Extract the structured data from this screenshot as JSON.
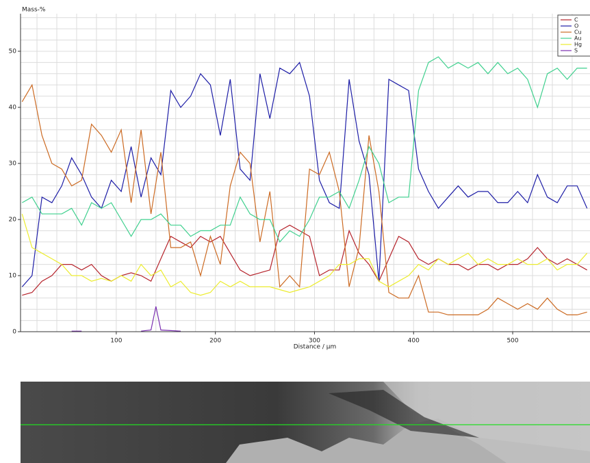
{
  "chart_data": {
    "type": "line",
    "ylabel": "Mass-%",
    "xlabel": "Distance / µm",
    "x": [
      5,
      15,
      25,
      35,
      45,
      55,
      65,
      75,
      85,
      95,
      105,
      115,
      125,
      135,
      145,
      155,
      165,
      175,
      185,
      195,
      205,
      215,
      225,
      235,
      245,
      255,
      265,
      275,
      285,
      295,
      305,
      315,
      325,
      335,
      345,
      355,
      365,
      375,
      385,
      395,
      405,
      415,
      425,
      435,
      445,
      455,
      465,
      475,
      485,
      495,
      505,
      515,
      525,
      535,
      545,
      555,
      565,
      575
    ],
    "xlim": [
      3.4,
      578
    ],
    "ylim": [
      0,
      56.7
    ],
    "xticks": [
      100,
      200,
      300,
      400,
      500
    ],
    "yticks": [
      0,
      10,
      20,
      30,
      40,
      50
    ],
    "xgrid": [
      20,
      40,
      60,
      80,
      120,
      140,
      160,
      180,
      220,
      240,
      260,
      280,
      320,
      340,
      360,
      380,
      420,
      440,
      460,
      480,
      520,
      540,
      560
    ],
    "ygrid": [
      2,
      4,
      6,
      8,
      12,
      14,
      16,
      18,
      22,
      24,
      26,
      28,
      32,
      34,
      36,
      38,
      42,
      44,
      46,
      48,
      52,
      54,
      56
    ],
    "grid": true,
    "legend": "upper right",
    "series": [
      {
        "name": "C",
        "color": "#b5222a",
        "values": [
          6.5,
          7,
          9,
          10,
          12,
          12,
          11,
          12,
          10,
          9,
          10,
          10.5,
          10,
          9,
          13,
          17,
          16,
          15,
          17,
          16,
          17,
          14,
          11,
          10,
          10.5,
          11,
          18,
          19,
          18,
          17,
          10,
          11,
          11,
          18,
          14,
          12,
          9,
          13,
          17,
          16,
          13,
          12,
          13,
          12,
          12,
          11,
          12,
          12,
          11,
          12,
          12,
          13,
          15,
          13,
          12,
          13,
          12,
          11
        ]
      },
      {
        "name": "O",
        "color": "#1c1ca6",
        "values": [
          8,
          10,
          24,
          23,
          26,
          31,
          28,
          24,
          22,
          27,
          25,
          33,
          24,
          31,
          28,
          43,
          40,
          42,
          46,
          44,
          35,
          45,
          29,
          27,
          46,
          38,
          47,
          46,
          48,
          42,
          27,
          23,
          22,
          45,
          34,
          28,
          9,
          45,
          44,
          43,
          29,
          25,
          22,
          24,
          26,
          24,
          25,
          25,
          23,
          23,
          25,
          23,
          28,
          24,
          23,
          26,
          26,
          22
        ]
      },
      {
        "name": "Cu",
        "color": "#cc6a22",
        "values": [
          41,
          44,
          35,
          30,
          29,
          26,
          27,
          37,
          35,
          32,
          36,
          23,
          36,
          21,
          32,
          15,
          15,
          16,
          10,
          17,
          12,
          26,
          32,
          30,
          16,
          25,
          8,
          10,
          8,
          29,
          28,
          32,
          25,
          8,
          15,
          35,
          25,
          7,
          6,
          6,
          10,
          3.5,
          3.5,
          3,
          3,
          3,
          3,
          4,
          6,
          5,
          4,
          5,
          4,
          6,
          4,
          3,
          3,
          3.5
        ]
      },
      {
        "name": "Au",
        "color": "#3fd08e",
        "values": [
          23,
          24,
          21,
          21,
          21,
          22,
          19,
          23,
          22,
          23,
          20,
          17,
          20,
          20,
          21,
          19,
          19,
          17,
          18,
          18,
          19,
          19,
          24,
          21,
          20,
          20,
          16,
          18,
          17,
          20,
          24,
          24,
          25,
          22,
          27,
          33,
          30,
          23,
          24,
          24,
          43,
          48,
          49,
          47,
          48,
          47,
          48,
          46,
          48,
          46,
          47,
          45,
          40,
          46,
          47,
          45,
          47,
          47
        ]
      },
      {
        "name": "Hg",
        "color": "#ecec2e",
        "values": [
          21,
          15,
          14,
          13,
          12,
          10,
          10,
          9,
          9.5,
          9,
          10,
          9,
          12,
          10,
          11,
          8,
          9,
          7,
          6.5,
          7,
          9,
          8,
          9,
          8,
          8,
          8,
          7.5,
          7,
          7.5,
          8,
          9,
          10,
          12,
          12,
          13,
          13,
          9,
          8,
          9,
          10,
          12,
          11,
          13,
          12,
          13,
          14,
          12,
          13,
          12,
          12,
          13,
          12,
          12,
          13,
          11,
          12,
          12,
          14
        ]
      },
      {
        "name": "S",
        "color": "#7a2fb0",
        "x": [
          55,
          65,
          95,
          125,
          135,
          140,
          145,
          155,
          165
        ],
        "values": [
          0.1,
          0.1,
          null,
          0.1,
          0.3,
          4.5,
          0.3,
          0.2,
          0.1
        ]
      }
    ]
  }
}
